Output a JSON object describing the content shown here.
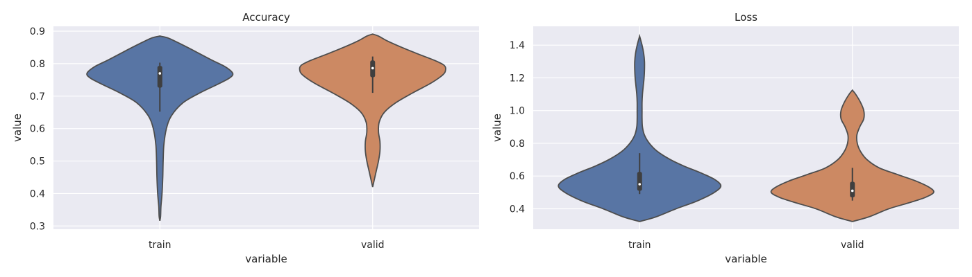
{
  "chart_data": [
    {
      "type": "violin",
      "title": "Accuracy",
      "xlabel": "variable",
      "ylabel": "value",
      "ylim": [
        0.29,
        0.915
      ],
      "yticks": [
        0.3,
        0.4,
        0.5,
        0.6,
        0.7,
        0.8,
        0.9
      ],
      "ytick_labels": [
        "0.3",
        "0.4",
        "0.5",
        "0.6",
        "0.7",
        "0.8",
        "0.9"
      ],
      "grid": true,
      "categories": [
        "train",
        "valid"
      ],
      "violins": [
        {
          "category": "train",
          "color": "#5875a4",
          "min": 0.316,
          "max": 0.885,
          "whisker": [
            0.652,
            0.803
          ],
          "q1": 0.726,
          "median": 0.77,
          "q3": 0.793,
          "density": [
            [
              0.316,
              0.0
            ],
            [
              0.33,
              0.01
            ],
            [
              0.36,
              0.015
            ],
            [
              0.4,
              0.03
            ],
            [
              0.45,
              0.04
            ],
            [
              0.5,
              0.045
            ],
            [
              0.55,
              0.055
            ],
            [
              0.6,
              0.09
            ],
            [
              0.64,
              0.16
            ],
            [
              0.68,
              0.32
            ],
            [
              0.71,
              0.55
            ],
            [
              0.735,
              0.78
            ],
            [
              0.755,
              0.95
            ],
            [
              0.77,
              1.0
            ],
            [
              0.79,
              0.9
            ],
            [
              0.81,
              0.72
            ],
            [
              0.83,
              0.55
            ],
            [
              0.85,
              0.38
            ],
            [
              0.87,
              0.2
            ],
            [
              0.88,
              0.1
            ],
            [
              0.885,
              0.0
            ]
          ]
        },
        {
          "category": "valid",
          "color": "#cc8963",
          "min": 0.42,
          "max": 0.891,
          "whisker": [
            0.71,
            0.822
          ],
          "q1": 0.758,
          "median": 0.786,
          "q3": 0.81,
          "density": [
            [
              0.42,
              0.0
            ],
            [
              0.44,
              0.02
            ],
            [
              0.47,
              0.05
            ],
            [
              0.5,
              0.08
            ],
            [
              0.53,
              0.1
            ],
            [
              0.56,
              0.1
            ],
            [
              0.59,
              0.08
            ],
            [
              0.62,
              0.09
            ],
            [
              0.65,
              0.16
            ],
            [
              0.68,
              0.32
            ],
            [
              0.71,
              0.55
            ],
            [
              0.74,
              0.8
            ],
            [
              0.765,
              0.96
            ],
            [
              0.78,
              1.0
            ],
            [
              0.795,
              0.98
            ],
            [
              0.81,
              0.85
            ],
            [
              0.83,
              0.62
            ],
            [
              0.85,
              0.4
            ],
            [
              0.87,
              0.2
            ],
            [
              0.885,
              0.08
            ],
            [
              0.891,
              0.0
            ]
          ]
        }
      ]
    },
    {
      "type": "violin",
      "title": "Loss",
      "xlabel": "variable",
      "ylabel": "value",
      "ylim": [
        0.275,
        1.515
      ],
      "yticks": [
        0.4,
        0.6,
        0.8,
        1.0,
        1.2,
        1.4
      ],
      "ytick_labels": [
        "0.4",
        "0.6",
        "0.8",
        "1.0",
        "1.2",
        "1.4"
      ],
      "grid": true,
      "categories": [
        "train",
        "valid"
      ],
      "violins": [
        {
          "category": "train",
          "color": "#5875a4",
          "min": 0.322,
          "max": 1.455,
          "whisker": [
            0.49,
            0.74
          ],
          "q1": 0.51,
          "median": 0.55,
          "q3": 0.625,
          "density": [
            [
              0.322,
              0.0
            ],
            [
              0.35,
              0.2
            ],
            [
              0.4,
              0.45
            ],
            [
              0.45,
              0.72
            ],
            [
              0.5,
              0.92
            ],
            [
              0.54,
              1.0
            ],
            [
              0.58,
              0.92
            ],
            [
              0.62,
              0.75
            ],
            [
              0.66,
              0.55
            ],
            [
              0.7,
              0.38
            ],
            [
              0.75,
              0.22
            ],
            [
              0.8,
              0.12
            ],
            [
              0.85,
              0.06
            ],
            [
              0.9,
              0.035
            ],
            [
              0.95,
              0.03
            ],
            [
              1.0,
              0.03
            ],
            [
              1.05,
              0.03
            ],
            [
              1.1,
              0.035
            ],
            [
              1.15,
              0.045
            ],
            [
              1.2,
              0.055
            ],
            [
              1.25,
              0.06
            ],
            [
              1.3,
              0.06
            ],
            [
              1.35,
              0.05
            ],
            [
              1.4,
              0.03
            ],
            [
              1.455,
              0.0
            ]
          ]
        },
        {
          "category": "valid",
          "color": "#cc8963",
          "min": 0.322,
          "max": 1.125,
          "whisker": [
            0.45,
            0.65
          ],
          "q1": 0.47,
          "median": 0.51,
          "q3": 0.565,
          "density": [
            [
              0.322,
              0.0
            ],
            [
              0.35,
              0.2
            ],
            [
              0.4,
              0.45
            ],
            [
              0.44,
              0.72
            ],
            [
              0.47,
              0.9
            ],
            [
              0.5,
              1.0
            ],
            [
              0.53,
              0.95
            ],
            [
              0.57,
              0.78
            ],
            [
              0.61,
              0.55
            ],
            [
              0.65,
              0.33
            ],
            [
              0.7,
              0.18
            ],
            [
              0.75,
              0.1
            ],
            [
              0.8,
              0.06
            ],
            [
              0.85,
              0.055
            ],
            [
              0.9,
              0.09
            ],
            [
              0.95,
              0.14
            ],
            [
              1.0,
              0.14
            ],
            [
              1.05,
              0.1
            ],
            [
              1.1,
              0.04
            ],
            [
              1.125,
              0.0
            ]
          ]
        }
      ]
    }
  ]
}
